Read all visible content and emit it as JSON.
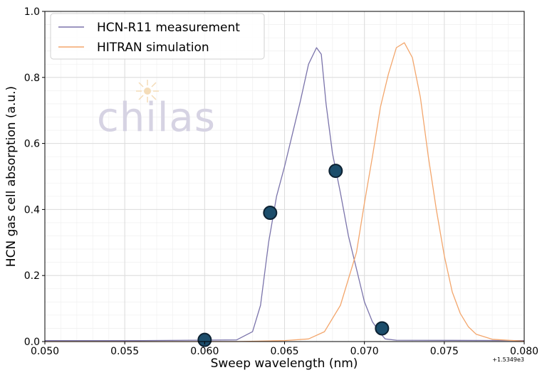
{
  "chart_data": {
    "type": "line",
    "xlabel": "Sweep wavelength (nm)",
    "ylabel": "HCN gas cell absorption (a.u.)",
    "xlim": [
      0.05,
      0.08
    ],
    "ylim": [
      0.0,
      1.0
    ],
    "x_offset_label": "+1.5349e3",
    "x_ticks": [
      "0.050",
      "0.055",
      "0.060",
      "0.065",
      "0.070",
      "0.075",
      "0.080"
    ],
    "y_ticks": [
      "0.0",
      "0.2",
      "0.4",
      "0.6",
      "0.8",
      "1.0"
    ],
    "grid": true,
    "legend_position": "top-left",
    "series": [
      {
        "name": "HCN-R11 measurement",
        "color": "#7b74ab",
        "x": [
          0.05,
          0.056,
          0.062,
          0.063,
          0.0635,
          0.064,
          0.0645,
          0.065,
          0.0655,
          0.066,
          0.0665,
          0.067,
          0.0673,
          0.0676,
          0.068,
          0.0685,
          0.069,
          0.0695,
          0.07,
          0.0705,
          0.071,
          0.0713,
          0.072,
          0.08
        ],
        "y": [
          0.003,
          0.003,
          0.005,
          0.03,
          0.11,
          0.3,
          0.44,
          0.53,
          0.63,
          0.73,
          0.84,
          0.89,
          0.87,
          0.72,
          0.57,
          0.45,
          0.32,
          0.22,
          0.12,
          0.06,
          0.025,
          0.008,
          0.004,
          0.003
        ]
      },
      {
        "name": "HITRAN simulation",
        "color": "#f3a66c",
        "x": [
          0.05,
          0.062,
          0.065,
          0.0665,
          0.0675,
          0.0685,
          0.0695,
          0.07,
          0.0705,
          0.071,
          0.0715,
          0.072,
          0.0725,
          0.073,
          0.0735,
          0.074,
          0.0745,
          0.075,
          0.0755,
          0.076,
          0.0765,
          0.077,
          0.078,
          0.08
        ],
        "y": [
          0.0,
          0.0,
          0.003,
          0.008,
          0.03,
          0.11,
          0.27,
          0.42,
          0.56,
          0.71,
          0.81,
          0.89,
          0.905,
          0.86,
          0.74,
          0.56,
          0.4,
          0.26,
          0.15,
          0.085,
          0.045,
          0.022,
          0.007,
          0.001
        ]
      }
    ],
    "markers": [
      {
        "x": 0.06,
        "y": 0.005
      },
      {
        "x": 0.0641,
        "y": 0.39
      },
      {
        "x": 0.0682,
        "y": 0.517
      },
      {
        "x": 0.0711,
        "y": 0.04
      }
    ],
    "marker_color": "#1c4d6b",
    "watermark": "chilas"
  }
}
